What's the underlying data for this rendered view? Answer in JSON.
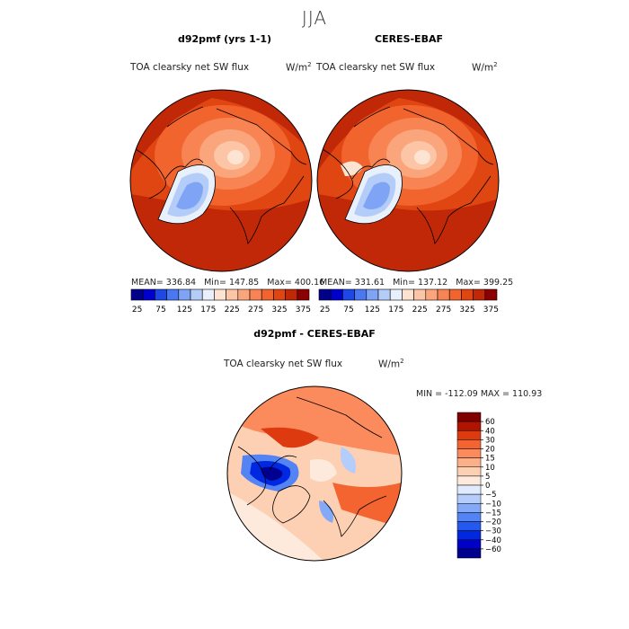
{
  "figure": {
    "season": "JJA",
    "panels": [
      {
        "title": "d92pmf (yrs 1-1)",
        "variable": "TOA clearsky net SW flux",
        "units": "W/m",
        "units_exp": "2",
        "stats": {
          "mean_label": "MEAN=",
          "mean": "336.84",
          "min_label": "Min=",
          "min": "147.85",
          "max_label": "Max=",
          "max": "400.16"
        }
      },
      {
        "title": "CERES-EBAF",
        "variable": "TOA clearsky net SW flux",
        "units": "W/m",
        "units_exp": "2",
        "stats": {
          "mean_label": "MEAN=",
          "mean": "331.61",
          "min_label": "Min=",
          "min": "137.12",
          "max_label": "Max=",
          "max": "399.25"
        }
      },
      {
        "title": "d92pmf - CERES-EBAF",
        "variable": "TOA clearsky net SW flux",
        "units": "W/m",
        "units_exp": "2",
        "stats": {
          "min_label": "MIN =",
          "min": "-112.09",
          "max_label": "MAX =",
          "max": "110.93"
        }
      }
    ]
  },
  "colors": {
    "abs_scale": [
      "#00008b",
      "#0000cd",
      "#1e48e6",
      "#4a78f0",
      "#80a4f5",
      "#b4ccf8",
      "#e8f0fc",
      "#fde3d2",
      "#fcc6a6",
      "#fba57c",
      "#f88454",
      "#f2642e",
      "#e04612",
      "#c02808",
      "#8b0000"
    ],
    "diff_scale": [
      "#000090",
      "#0000c8",
      "#0028e0",
      "#2458ee",
      "#5484f4",
      "#84aaf7",
      "#b4cdfa",
      "#e0ebfd",
      "#fdeadc",
      "#fdd0b4",
      "#fcb08a",
      "#fb8a5c",
      "#f46430",
      "#dd3a10",
      "#b01400",
      "#800000"
    ]
  },
  "chart_data": [
    {
      "type": "heatmap",
      "projection": "north polar stereographic",
      "title": "d92pmf (yrs 1-1)",
      "variable": "TOA clearsky net SW flux",
      "units": "W/m2",
      "mean": 336.84,
      "min": 147.85,
      "max": 400.16,
      "colorbar_levels": [
        25,
        50,
        75,
        100,
        125,
        150,
        175,
        200,
        225,
        250,
        275,
        300,
        325,
        350,
        375
      ],
      "colorbar_tick_labels": [
        "25",
        "75",
        "125",
        "175",
        "225",
        "275",
        "325",
        "375"
      ],
      "field_levels": [
        375,
        350,
        325,
        300,
        275,
        250,
        225,
        200,
        175,
        150
      ]
    },
    {
      "type": "heatmap",
      "projection": "north polar stereographic",
      "title": "CERES-EBAF",
      "variable": "TOA clearsky net SW flux",
      "units": "W/m2",
      "mean": 331.61,
      "min": 137.12,
      "max": 399.25,
      "colorbar_levels": [
        25,
        50,
        75,
        100,
        125,
        150,
        175,
        200,
        225,
        250,
        275,
        300,
        325,
        350,
        375
      ],
      "colorbar_tick_labels": [
        "25",
        "75",
        "125",
        "175",
        "225",
        "275",
        "325",
        "375"
      ],
      "field_levels": [
        375,
        350,
        325,
        300,
        275,
        250,
        225,
        200,
        175,
        150
      ]
    },
    {
      "type": "heatmap",
      "projection": "north polar stereographic",
      "title": "d92pmf - CERES-EBAF",
      "variable": "TOA clearsky net SW flux",
      "units": "W/m2",
      "min": -112.09,
      "max": 110.93,
      "colorbar_levels": [
        60,
        40,
        30,
        20,
        15,
        10,
        5,
        0,
        -5,
        -10,
        -15,
        -20,
        -30,
        -40,
        -60
      ],
      "colorbar_tick_labels": [
        "60",
        "40",
        "30",
        "20",
        "15",
        "10",
        "5",
        "0",
        "−5",
        "−10",
        "−15",
        "−20",
        "−30",
        "−40",
        "−60"
      ]
    }
  ]
}
